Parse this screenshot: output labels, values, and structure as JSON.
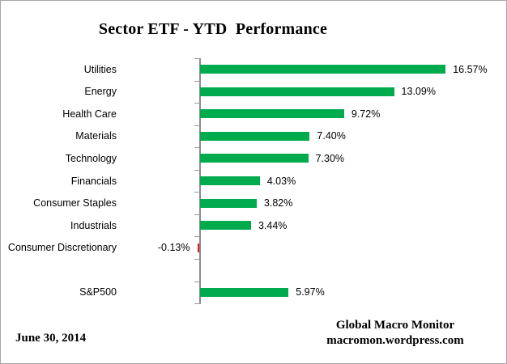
{
  "title": "Sector ETF - YTD  Performance",
  "footer": {
    "date": "June 30, 2014",
    "brand_line1": "Global Macro Monitor",
    "brand_line2": "macromon.wordpress.com"
  },
  "colors": {
    "positive_bar": "#00ab4e",
    "negative_bar": "#ec1c24",
    "axis": "#8c8c8c",
    "tick": "#999999",
    "border": "#a6a6a6"
  },
  "chart_data": {
    "type": "bar",
    "orientation": "horizontal",
    "title": "Sector ETF - YTD  Performance",
    "unit": "%",
    "xlim": [
      -1,
      20
    ],
    "grid": false,
    "legend": false,
    "value_labels_shown": true,
    "categories": [
      "Utilities",
      "Energy",
      "Health Care",
      "Materials",
      "Technology",
      "Financials",
      "Consumer Staples",
      "Industrials",
      "Consumer Discretionary",
      "",
      "S&P500"
    ],
    "values": [
      16.57,
      13.09,
      9.72,
      7.4,
      7.3,
      4.03,
      3.82,
      3.44,
      -0.13,
      null,
      5.97
    ],
    "value_labels": [
      "16.57%",
      "13.09%",
      "9.72%",
      "7.40%",
      "7.30%",
      "4.03%",
      "3.82%",
      "3.44%",
      "-0.13%",
      "",
      "5.97%"
    ]
  }
}
